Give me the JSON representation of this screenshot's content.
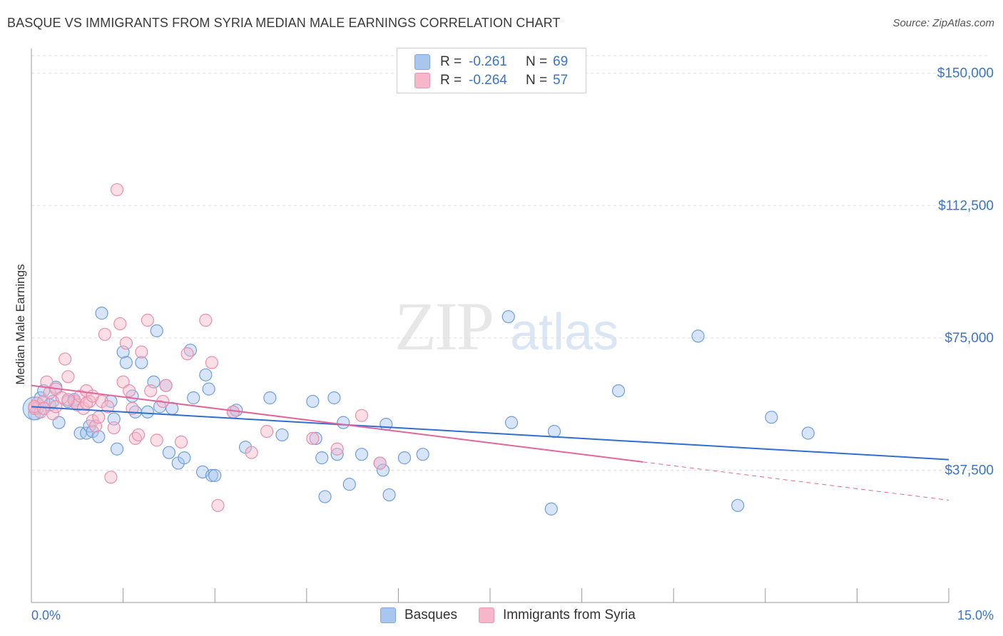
{
  "header": {
    "title": "BASQUE VS IMMIGRANTS FROM SYRIA MEDIAN MALE EARNINGS CORRELATION CHART",
    "source": "Source: ZipAtlas.com"
  },
  "watermark": {
    "zip": "ZIP",
    "atlas": "atlas"
  },
  "legend": {
    "rows": [
      {
        "r_label": "R =",
        "r_value": "-0.261",
        "n_label": "N =",
        "n_value": "69",
        "color": "#a9c6ef"
      },
      {
        "r_label": "R =",
        "r_value": "-0.264",
        "n_label": "N =",
        "n_value": "57",
        "color": "#f6b7ca"
      }
    ]
  },
  "bottom_legend": [
    {
      "label": "Basques",
      "color": "#a9c6ef"
    },
    {
      "label": "Immigrants from Syria",
      "color": "#f6b7ca"
    }
  ],
  "colors": {
    "blue_point_fill": "rgba(169,198,239,0.45)",
    "blue_point_stroke": "#6f9fdd",
    "pink_point_fill": "rgba(246,183,202,0.45)",
    "pink_point_stroke": "#e98fae",
    "blue_line": "#2f6fd0",
    "pink_line": "#e0679a",
    "grid": "#dddddd",
    "tick_text": "#3a74c9"
  },
  "chart_data": {
    "type": "scatter",
    "title": "BASQUE VS IMMIGRANTS FROM SYRIA MEDIAN MALE EARNINGS CORRELATION CHART",
    "xlabel": "",
    "ylabel": "Median Male Earnings",
    "xlim": [
      0,
      15
    ],
    "ylim": [
      0,
      155000
    ],
    "x_tick_labels": [
      "0.0%",
      "15.0%"
    ],
    "y_ticks": [
      37500,
      75000,
      112500,
      150000
    ],
    "y_tick_labels": [
      "$37,500",
      "$75,000",
      "$112,500",
      "$150,000"
    ],
    "grid": true,
    "legend_position": "top-center",
    "series": [
      {
        "name": "Basques",
        "r": -0.261,
        "n": 69,
        "trend": {
          "x": [
            0,
            15
          ],
          "y": [
            55500,
            40500
          ],
          "dashed_after": null
        },
        "points": [
          [
            0.1,
            55000
          ],
          [
            0.15,
            58000
          ],
          [
            0.2,
            60000
          ],
          [
            0.3,
            56000
          ],
          [
            0.35,
            57000
          ],
          [
            0.4,
            61000
          ],
          [
            0.45,
            51000
          ],
          [
            0.6,
            57000
          ],
          [
            0.7,
            57500
          ],
          [
            0.8,
            48000
          ],
          [
            0.9,
            48000
          ],
          [
            0.95,
            50000
          ],
          [
            1.0,
            48500
          ],
          [
            1.1,
            47000
          ],
          [
            1.15,
            82000
          ],
          [
            1.3,
            57000
          ],
          [
            1.35,
            52000
          ],
          [
            1.4,
            43500
          ],
          [
            1.5,
            71000
          ],
          [
            1.55,
            68000
          ],
          [
            1.65,
            58500
          ],
          [
            1.7,
            54000
          ],
          [
            1.8,
            68000
          ],
          [
            1.9,
            54000
          ],
          [
            2.0,
            62500
          ],
          [
            2.05,
            77000
          ],
          [
            2.1,
            55500
          ],
          [
            2.2,
            61500
          ],
          [
            2.25,
            42500
          ],
          [
            2.3,
            55000
          ],
          [
            2.4,
            39500
          ],
          [
            2.5,
            41000
          ],
          [
            2.6,
            71500
          ],
          [
            2.65,
            58000
          ],
          [
            2.85,
            64500
          ],
          [
            2.9,
            60500
          ],
          [
            2.8,
            37000
          ],
          [
            2.95,
            36000
          ],
          [
            3.0,
            36000
          ],
          [
            3.3,
            54000
          ],
          [
            3.35,
            54500
          ],
          [
            3.5,
            44000
          ],
          [
            3.9,
            58000
          ],
          [
            4.1,
            47500
          ],
          [
            4.6,
            57000
          ],
          [
            4.65,
            46500
          ],
          [
            4.75,
            41000
          ],
          [
            4.8,
            30000
          ],
          [
            4.95,
            58000
          ],
          [
            5.0,
            42000
          ],
          [
            5.1,
            51000
          ],
          [
            5.2,
            33500
          ],
          [
            5.4,
            42000
          ],
          [
            5.7,
            39500
          ],
          [
            5.75,
            37500
          ],
          [
            5.8,
            50500
          ],
          [
            5.85,
            30500
          ],
          [
            6.1,
            41000
          ],
          [
            6.4,
            42000
          ],
          [
            7.8,
            81000
          ],
          [
            7.85,
            51000
          ],
          [
            8.5,
            26500
          ],
          [
            8.55,
            48500
          ],
          [
            9.6,
            60000
          ],
          [
            10.9,
            75500
          ],
          [
            11.55,
            27500
          ],
          [
            12.1,
            52500
          ],
          [
            12.7,
            48000
          ],
          [
            0.05,
            53500
          ]
        ]
      },
      {
        "name": "Immigrants from Syria",
        "r": -0.264,
        "n": 57,
        "trend": {
          "x": [
            0,
            15
          ],
          "y": [
            61500,
            29000
          ],
          "solid_until_x": 10
        },
        "points": [
          [
            0.05,
            55000
          ],
          [
            0.1,
            56500
          ],
          [
            0.15,
            54000
          ],
          [
            0.2,
            57000
          ],
          [
            0.25,
            62500
          ],
          [
            0.3,
            59500
          ],
          [
            0.35,
            53500
          ],
          [
            0.4,
            60500
          ],
          [
            0.5,
            58000
          ],
          [
            0.55,
            69000
          ],
          [
            0.6,
            64000
          ],
          [
            0.7,
            57000
          ],
          [
            0.75,
            56000
          ],
          [
            0.8,
            58500
          ],
          [
            0.85,
            55000
          ],
          [
            0.9,
            60000
          ],
          [
            0.95,
            57000
          ],
          [
            1.0,
            51500
          ],
          [
            1.05,
            50000
          ],
          [
            1.1,
            52500
          ],
          [
            1.15,
            57000
          ],
          [
            1.2,
            76000
          ],
          [
            1.25,
            55500
          ],
          [
            1.3,
            35500
          ],
          [
            1.35,
            49500
          ],
          [
            1.4,
            117000
          ],
          [
            1.45,
            79000
          ],
          [
            1.5,
            62500
          ],
          [
            1.55,
            73500
          ],
          [
            1.6,
            60000
          ],
          [
            1.65,
            55000
          ],
          [
            1.7,
            46500
          ],
          [
            1.75,
            47500
          ],
          [
            1.8,
            71000
          ],
          [
            1.9,
            80000
          ],
          [
            1.95,
            60000
          ],
          [
            2.05,
            46000
          ],
          [
            2.15,
            57000
          ],
          [
            2.2,
            61500
          ],
          [
            2.45,
            45500
          ],
          [
            2.55,
            70500
          ],
          [
            2.85,
            80000
          ],
          [
            2.95,
            68000
          ],
          [
            3.05,
            27500
          ],
          [
            3.3,
            54000
          ],
          [
            3.6,
            42500
          ],
          [
            3.85,
            48500
          ],
          [
            4.6,
            46500
          ],
          [
            5.0,
            43500
          ],
          [
            5.4,
            53000
          ],
          [
            5.7,
            39500
          ],
          [
            0.05,
            55500
          ],
          [
            0.2,
            55000
          ],
          [
            0.4,
            55500
          ],
          [
            0.6,
            57500
          ],
          [
            0.9,
            56500
          ],
          [
            1.0,
            58500
          ]
        ]
      }
    ]
  }
}
